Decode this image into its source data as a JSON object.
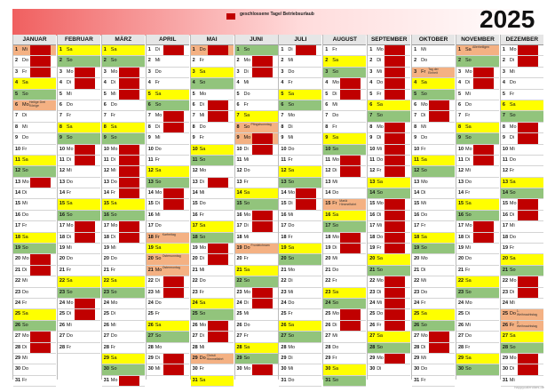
{
  "header": {
    "year": "2025",
    "legend": "geschlossene Tage/ Betriebsurlaub",
    "colors": {
      "banner_start": "#f06060",
      "closed": "#c00000",
      "saturday": "#ffff00",
      "sunday": "#92c47c",
      "holiday": "#f4b183"
    }
  },
  "footer": {
    "credit": "happycalendars.de"
  },
  "months": [
    {
      "name": "JANUAR",
      "first_weekday": 2,
      "days": 31,
      "holidays": {
        "1": "Neujahr",
        "6": "Heilige Drei Könige"
      },
      "closed": [
        1,
        2,
        3,
        13,
        20,
        21,
        27,
        28
      ]
    },
    {
      "name": "FEBRUAR",
      "first_weekday": 5,
      "days": 28,
      "holidays": {},
      "closed": [
        3,
        4,
        10,
        11,
        17,
        18,
        24,
        25
      ]
    },
    {
      "name": "MÄRZ",
      "first_weekday": 5,
      "days": 31,
      "holidays": {},
      "closed": [
        3,
        4,
        5,
        10,
        11,
        12,
        13,
        14,
        17,
        18,
        31
      ]
    },
    {
      "name": "APRIL",
      "first_weekday": 1,
      "days": 30,
      "holidays": {
        "18": "Karfreitag",
        "20": "Ostersonntag",
        "21": "Ostermontag"
      },
      "closed": [
        1,
        7,
        8,
        14,
        15,
        22,
        23,
        29,
        30
      ]
    },
    {
      "name": "MAI",
      "first_weekday": 3,
      "days": 31,
      "holidays": {
        "1": "Tag der Arbeit",
        "29": "Christi Himmelfahrt"
      },
      "closed": [
        1,
        6,
        7,
        13,
        19,
        20,
        26,
        27
      ]
    },
    {
      "name": "JUNI",
      "first_weekday": 6,
      "days": 30,
      "holidays": {
        "8": "Pfingstsonntag",
        "9": "Pfingstmontag",
        "19": "Fronleichnam"
      },
      "closed": [
        2,
        3,
        9,
        10,
        16,
        17,
        23,
        24,
        30
      ]
    },
    {
      "name": "JULI",
      "first_weekday": 1,
      "days": 31,
      "holidays": {},
      "closed": [
        1,
        14,
        15
      ]
    },
    {
      "name": "AUGUST",
      "first_weekday": 4,
      "days": 31,
      "holidays": {
        "15": "Mariä Himmelfahrt"
      },
      "closed": [
        4,
        5,
        11,
        12,
        18,
        19,
        25,
        26
      ]
    },
    {
      "name": "SEPTEMBER",
      "first_weekday": 0,
      "days": 30,
      "holidays": {},
      "closed": [
        1,
        2,
        3,
        4,
        5,
        8,
        9,
        10,
        11,
        12,
        15,
        16,
        17,
        18,
        19,
        22,
        23,
        24,
        25,
        26,
        29
      ]
    },
    {
      "name": "OKTOBER",
      "first_weekday": 2,
      "days": 31,
      "holidays": {
        "3": "Tag der Einheit"
      },
      "closed": [
        6,
        7,
        27,
        28
      ]
    },
    {
      "name": "NOVEMBER",
      "first_weekday": 5,
      "days": 30,
      "holidays": {
        "1": "Allerheiligen"
      },
      "closed": [
        3,
        4,
        10,
        11,
        17,
        18
      ]
    },
    {
      "name": "DEZEMBER",
      "first_weekday": 0,
      "days": 31,
      "holidays": {
        "25": "1. Weihnachtstag",
        "26": "2. Weihnachtstag"
      },
      "closed": [
        1,
        2,
        8,
        9,
        15,
        16,
        22,
        23,
        29,
        30
      ]
    }
  ],
  "weekday_abbr": [
    "Mo",
    "Di",
    "Mi",
    "Do",
    "Fr",
    "Sa",
    "So"
  ]
}
